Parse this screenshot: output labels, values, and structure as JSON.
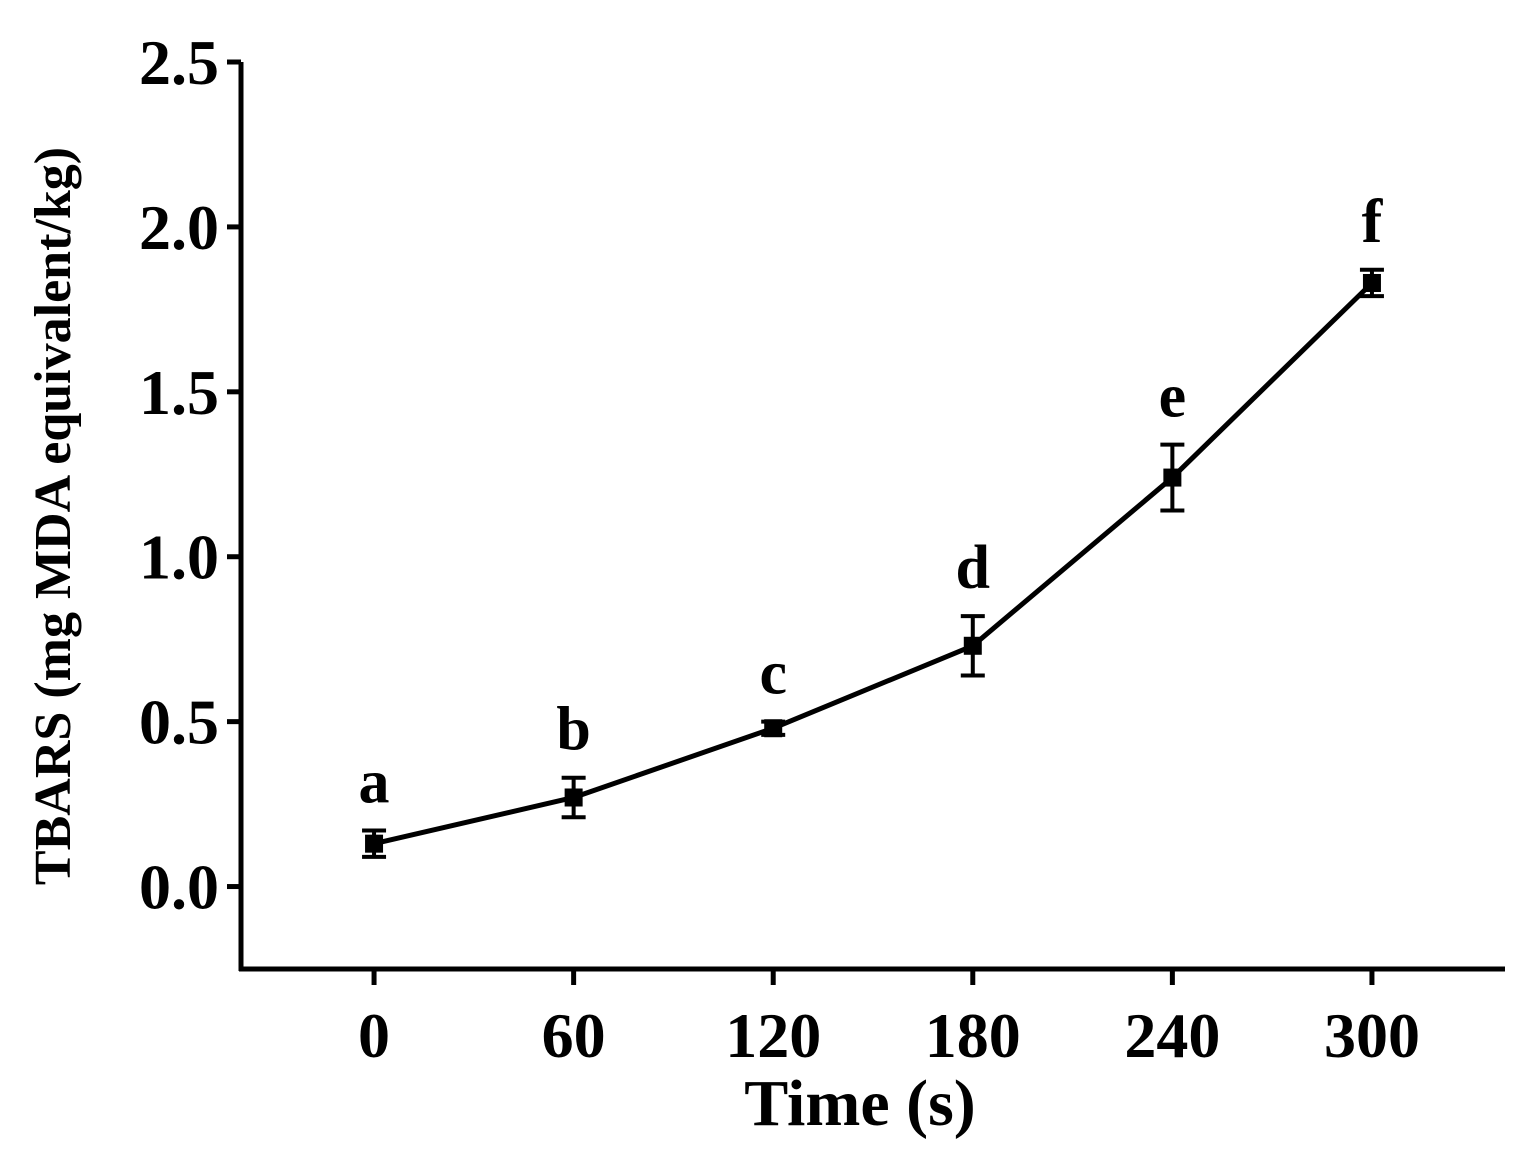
{
  "chart_data": {
    "type": "line",
    "title": "",
    "xlabel": "Time (s)",
    "ylabel": "TBARS (mg MDA equivalent/kg)",
    "xlim": [
      -40,
      340
    ],
    "ylim": [
      -0.25,
      2.5
    ],
    "xticks": [
      0,
      60,
      120,
      180,
      240,
      300
    ],
    "xtick_labels": [
      "0",
      "60",
      "120",
      "180",
      "240",
      "300"
    ],
    "yticks": [
      0.0,
      0.5,
      1.0,
      1.5,
      2.0,
      2.5
    ],
    "ytick_labels": [
      "0.0",
      "0.5",
      "1.0",
      "1.5",
      "2.0",
      "2.5"
    ],
    "grid": false,
    "legend": "none",
    "series": [
      {
        "x": [
          0,
          60,
          120,
          180,
          240,
          300
        ],
        "y": [
          0.13,
          0.27,
          0.48,
          0.73,
          1.24,
          1.83
        ],
        "error": [
          0.04,
          0.06,
          0.02,
          0.09,
          0.1,
          0.04
        ],
        "labels": [
          "a",
          "b",
          "c",
          "d",
          "e",
          "f"
        ],
        "color": "#000000"
      }
    ]
  }
}
